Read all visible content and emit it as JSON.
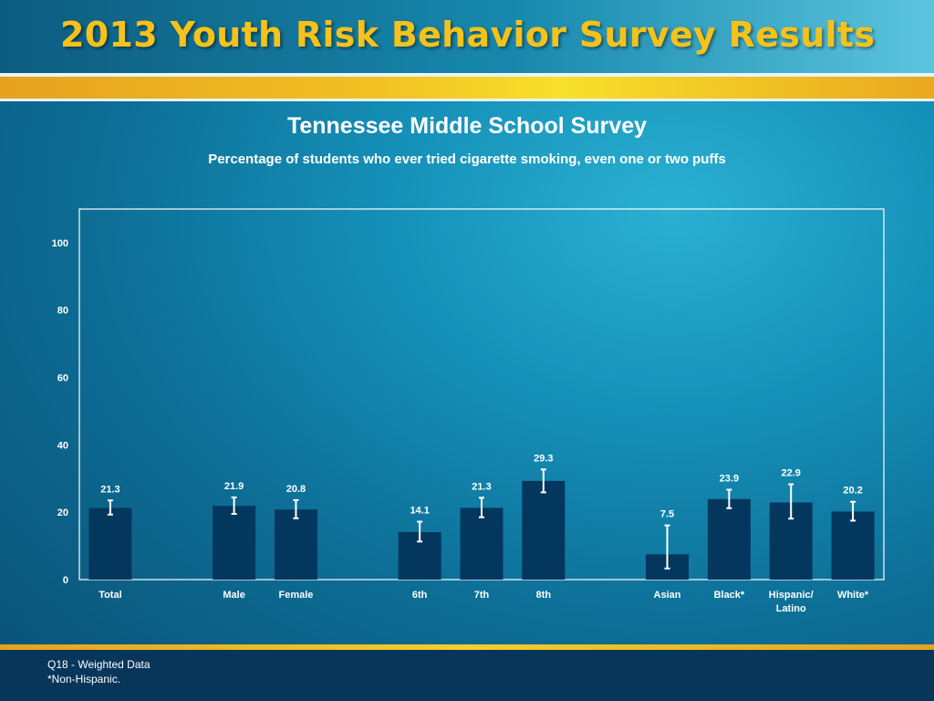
{
  "header": {
    "title": "2013 Youth Risk Behavior Survey Results"
  },
  "chart_data": {
    "type": "bar",
    "title": "Tennessee Middle School Survey",
    "subtitle": "Percentage of students who ever tried cigarette smoking, even one or two puffs",
    "ylim": [
      0,
      110
    ],
    "yticks": [
      0,
      20,
      40,
      60,
      80,
      100
    ],
    "grid": false,
    "categories": [
      "Total",
      "",
      "Male",
      "Female",
      "",
      "6th",
      "7th",
      "8th",
      "",
      "Asian",
      "Black*",
      "Hispanic/\nLatino",
      "White*"
    ],
    "values": [
      21.3,
      null,
      21.9,
      20.8,
      null,
      14.1,
      21.3,
      29.3,
      null,
      7.5,
      23.9,
      22.9,
      20.2
    ],
    "value_labels": [
      "21.3",
      "",
      "21.9",
      "20.8",
      "",
      "14.1",
      "21.3",
      "29.3",
      "",
      "7.5",
      "23.9",
      "22.9",
      "20.2"
    ],
    "ci_low": [
      19.3,
      null,
      19.5,
      18.2,
      null,
      11.3,
      18.5,
      25.9,
      null,
      3.3,
      21.2,
      18.1,
      17.5
    ],
    "ci_high": [
      23.5,
      null,
      24.4,
      23.6,
      null,
      17.2,
      24.3,
      32.7,
      null,
      16.1,
      26.7,
      28.3,
      23.1
    ],
    "colors": {
      "bar": "#04375e",
      "error_bar": "#ffffff",
      "axis": "#ffffff"
    }
  },
  "footer": {
    "note1": "Q18 - Weighted Data",
    "note2": "*Non-Hispanic."
  }
}
